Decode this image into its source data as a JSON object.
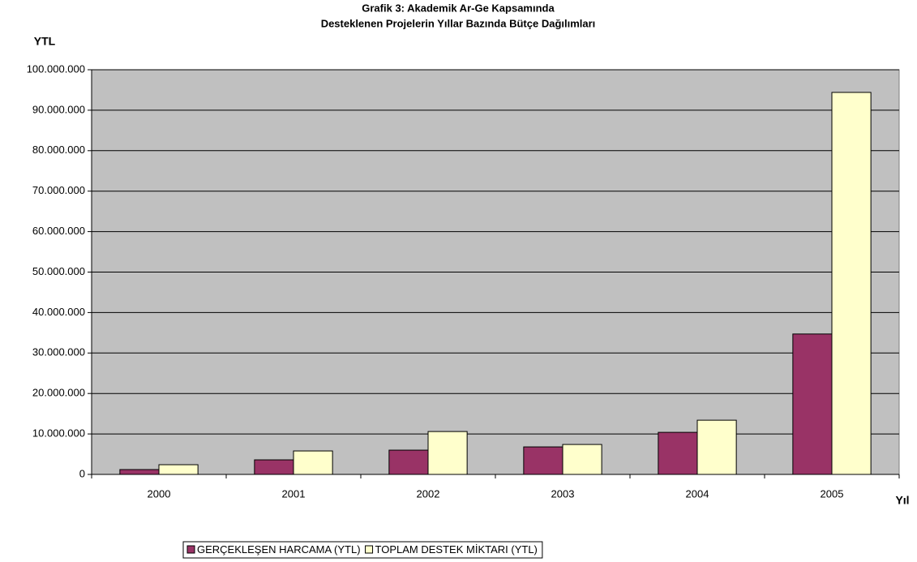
{
  "chart_data": {
    "type": "bar",
    "title": [
      "Grafik 3: Akademik Ar-Ge Kapsamında",
      "Desteklenen Projelerin Yıllar Bazında Bütçe Dağılımları"
    ],
    "y_label": "YTL",
    "x_label": "Yıl",
    "categories": [
      "2000",
      "2001",
      "2002",
      "2003",
      "2004",
      "2005"
    ],
    "series": [
      {
        "name": "GERÇEKLEŞEN HARCAMA (YTL)",
        "color": "#993366",
        "values": [
          1200000,
          3600000,
          6000000,
          6800000,
          10400000,
          34700000
        ]
      },
      {
        "name": "TOPLAM DESTEK MİKTARI (YTL)",
        "color": "#ffffcc",
        "values": [
          2400000,
          5800000,
          10600000,
          7400000,
          13400000,
          94400000
        ]
      }
    ],
    "ylim": [
      0,
      100000000
    ],
    "yticks": [
      0,
      {
        "value": 10000000,
        "label": "10.000.000"
      },
      {
        "value": 20000000,
        "label": "20.000.000"
      },
      {
        "value": 30000000,
        "label": "30.000.000"
      },
      {
        "value": 40000000,
        "label": "40.000.000"
      },
      {
        "value": 50000000,
        "label": "50.000.000"
      },
      {
        "value": 60000000,
        "label": "60.000.000"
      },
      {
        "value": 70000000,
        "label": "70.000.000"
      },
      {
        "value": 80000000,
        "label": "80.000.000"
      },
      {
        "value": 90000000,
        "label": "90.000.000"
      },
      {
        "value": 100000000,
        "label": "100.000.000"
      }
    ],
    "grid": true,
    "plot_background": "#c0c0c0",
    "legend": "bottom"
  }
}
